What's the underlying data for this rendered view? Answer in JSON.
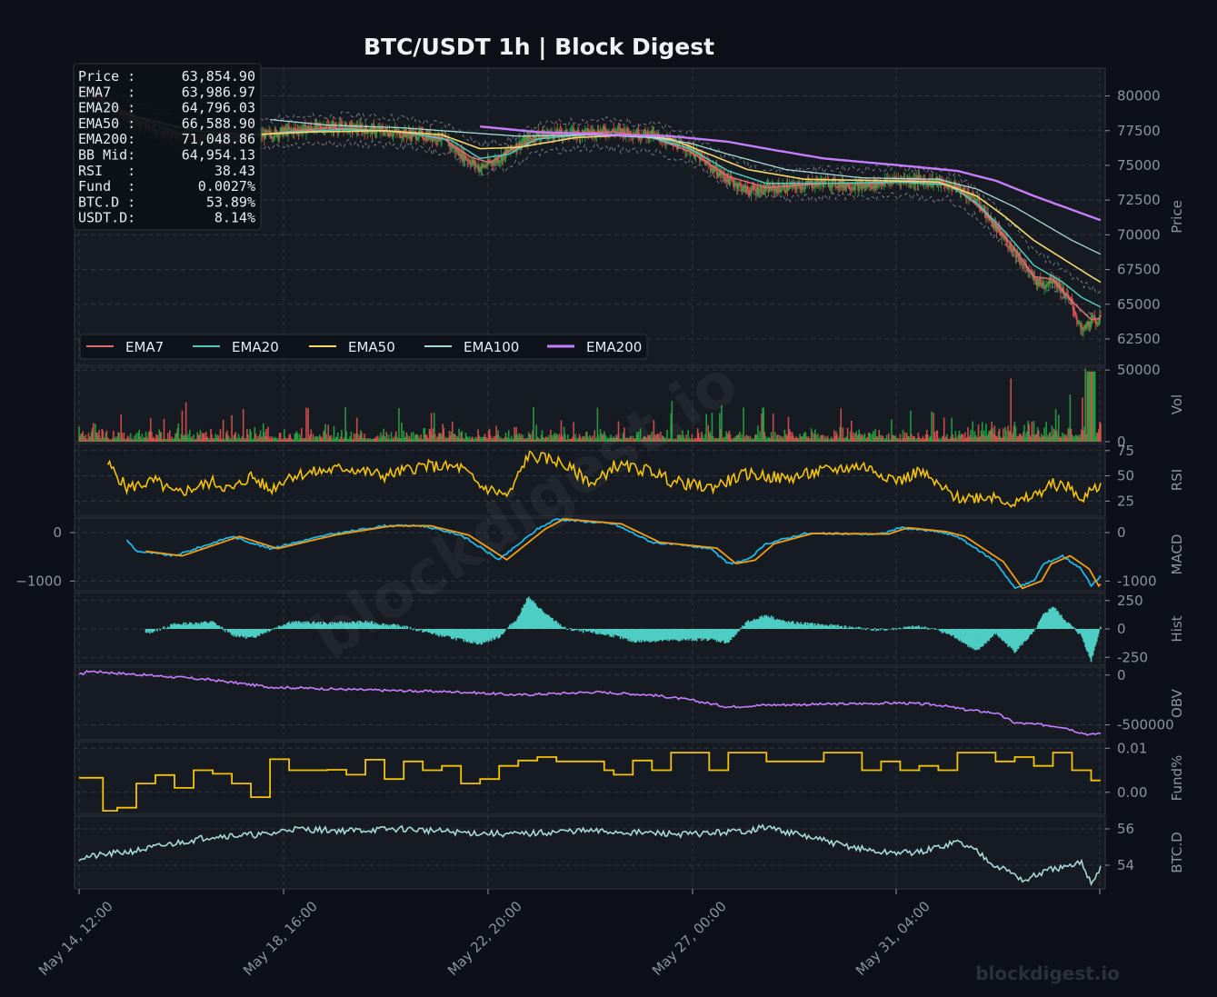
{
  "title": "BTC/USDT  1h  |  Block Digest",
  "watermark_center": "blockdigest.io",
  "watermark_corner": "blockdigest.io",
  "info_box": [
    {
      "label": "Price :",
      "value": "63,854.90"
    },
    {
      "label": "EMA7  :",
      "value": "63,986.97"
    },
    {
      "label": "EMA20 :",
      "value": "64,796.03"
    },
    {
      "label": "EMA50 :",
      "value": "66,588.90"
    },
    {
      "label": "EMA200:",
      "value": "71,048.86"
    },
    {
      "label": "BB Mid:",
      "value": "64,954.13"
    },
    {
      "label": "RSI   :",
      "value": "38.43"
    },
    {
      "label": "Fund  :",
      "value": "0.0027%"
    },
    {
      "label": "BTC.D :",
      "value": "53.89%"
    },
    {
      "label": "USDT.D:",
      "value": "8.14%"
    }
  ],
  "legend": [
    {
      "name": "EMA7",
      "color": "#e06c75"
    },
    {
      "name": "EMA20",
      "color": "#4ec9c0"
    },
    {
      "name": "EMA50",
      "color": "#f5d76e"
    },
    {
      "name": "EMA100",
      "color": "#a8d8d8"
    },
    {
      "name": "EMA200",
      "color": "#c77dff"
    }
  ],
  "colors": {
    "up": "#26a641",
    "down": "#d9534f",
    "rsi": "#f4c20d",
    "macd": "#1fb5e8",
    "signal": "#f39c12",
    "hist": "#4ecdc4",
    "obv": "#c77dff",
    "fund": "#f4c20d",
    "btcd": "#a8d8d8",
    "panel_bg": "#161b22",
    "page_bg": "#0d1117",
    "grid": "#30363d"
  },
  "chart_data": {
    "type": "candlestick",
    "x_ticks": [
      "May 14, 12:00",
      "May 18, 16:00",
      "May 22, 20:00",
      "May 27, 00:00",
      "May 31, 04:00"
    ],
    "panels": [
      {
        "id": "price",
        "ylabel": "Price",
        "ticks": [
          80000,
          77500,
          75000,
          72500,
          70000,
          67500,
          65000,
          62500
        ],
        "ylim": [
          60600,
          82000
        ],
        "series": [
          {
            "name": "Price",
            "points": [
              [
                0,
                80500
              ],
              [
                3,
                79500
              ],
              [
                6,
                78000
              ],
              [
                10,
                77200
              ],
              [
                14,
                76800
              ],
              [
                18,
                77000
              ],
              [
                22,
                77500
              ],
              [
                26,
                77800
              ],
              [
                30,
                77600
              ],
              [
                34,
                77300
              ],
              [
                38,
                77000
              ],
              [
                40,
                75800
              ],
              [
                42,
                74800
              ],
              [
                44,
                75500
              ],
              [
                46,
                76500
              ],
              [
                48,
                77200
              ],
              [
                52,
                77300
              ],
              [
                56,
                77500
              ],
              [
                60,
                77200
              ],
              [
                64,
                76200
              ],
              [
                66,
                75000
              ],
              [
                68,
                74000
              ],
              [
                70,
                73200
              ],
              [
                74,
                73400
              ],
              [
                78,
                73800
              ],
              [
                82,
                73500
              ],
              [
                86,
                74000
              ],
              [
                90,
                73800
              ],
              [
                92,
                73400
              ],
              [
                94,
                72500
              ],
              [
                96,
                70500
              ],
              [
                98,
                68800
              ],
              [
                100,
                66800
              ],
              [
                101,
                66400
              ],
              [
                102,
                66900
              ],
              [
                104,
                65000
              ],
              [
                105,
                63000
              ],
              [
                106,
                63800
              ],
              [
                107,
                63855
              ]
            ]
          },
          {
            "name": "EMA7",
            "points": [
              [
                0,
                80300
              ],
              [
                4,
                79200
              ],
              [
                8,
                77500
              ],
              [
                14,
                76900
              ],
              [
                20,
                77300
              ],
              [
                26,
                77700
              ],
              [
                32,
                77500
              ],
              [
                38,
                77000
              ],
              [
                41,
                75600
              ],
              [
                43,
                75200
              ],
              [
                46,
                76400
              ],
              [
                50,
                77300
              ],
              [
                56,
                77400
              ],
              [
                60,
                77000
              ],
              [
                64,
                76000
              ],
              [
                68,
                74200
              ],
              [
                72,
                73400
              ],
              [
                78,
                73700
              ],
              [
                84,
                73700
              ],
              [
                88,
                74000
              ],
              [
                92,
                73400
              ],
              [
                95,
                71500
              ],
              [
                98,
                69000
              ],
              [
                100,
                67000
              ],
              [
                102,
                66800
              ],
              [
                104,
                65200
              ],
              [
                106,
                63900
              ],
              [
                107,
                63987
              ]
            ]
          },
          {
            "name": "EMA20",
            "points": [
              [
                0,
                80000
              ],
              [
                5,
                78800
              ],
              [
                10,
                77400
              ],
              [
                16,
                77000
              ],
              [
                22,
                77400
              ],
              [
                28,
                77600
              ],
              [
                34,
                77400
              ],
              [
                39,
                76800
              ],
              [
                42,
                75500
              ],
              [
                45,
                75800
              ],
              [
                48,
                76900
              ],
              [
                54,
                77300
              ],
              [
                60,
                77000
              ],
              [
                64,
                76200
              ],
              [
                68,
                74600
              ],
              [
                72,
                73700
              ],
              [
                78,
                73700
              ],
              [
                86,
                73800
              ],
              [
                91,
                73600
              ],
              [
                94,
                72300
              ],
              [
                97,
                70200
              ],
              [
                100,
                67800
              ],
              [
                103,
                66600
              ],
              [
                105,
                65500
              ],
              [
                107,
                64796
              ]
            ]
          },
          {
            "name": "EMA50",
            "points": [
              [
                0,
                79500
              ],
              [
                6,
                78500
              ],
              [
                12,
                77500
              ],
              [
                18,
                77200
              ],
              [
                24,
                77400
              ],
              [
                32,
                77500
              ],
              [
                38,
                77200
              ],
              [
                42,
                76200
              ],
              [
                46,
                76300
              ],
              [
                52,
                77000
              ],
              [
                58,
                77200
              ],
              [
                62,
                76900
              ],
              [
                66,
                75800
              ],
              [
                70,
                74700
              ],
              [
                76,
                74000
              ],
              [
                84,
                73900
              ],
              [
                90,
                73800
              ],
              [
                94,
                72800
              ],
              [
                97,
                71300
              ],
              [
                100,
                69600
              ],
              [
                103,
                68300
              ],
              [
                106,
                67000
              ],
              [
                107,
                66589
              ]
            ]
          },
          {
            "name": "EMA100",
            "points": [
              [
                20,
                78300
              ],
              [
                26,
                77900
              ],
              [
                34,
                77700
              ],
              [
                40,
                77400
              ],
              [
                46,
                77100
              ],
              [
                54,
                77200
              ],
              [
                60,
                77000
              ],
              [
                64,
                76600
              ],
              [
                68,
                75800
              ],
              [
                74,
                74700
              ],
              [
                82,
                74100
              ],
              [
                90,
                74000
              ],
              [
                94,
                73300
              ],
              [
                98,
                72000
              ],
              [
                101,
                70800
              ],
              [
                104,
                69600
              ],
              [
                107,
                68600
              ]
            ]
          },
          {
            "name": "EMA200",
            "points": [
              [
                42,
                77800
              ],
              [
                48,
                77400
              ],
              [
                56,
                77200
              ],
              [
                62,
                77100
              ],
              [
                68,
                76700
              ],
              [
                72,
                76200
              ],
              [
                78,
                75500
              ],
              [
                86,
                75000
              ],
              [
                92,
                74600
              ],
              [
                96,
                73900
              ],
              [
                100,
                72800
              ],
              [
                104,
                71800
              ],
              [
                107,
                71049
              ]
            ]
          }
        ]
      },
      {
        "id": "vol",
        "ylabel": "Vol",
        "ticks": [
          50000,
          0
        ],
        "ylim": [
          0,
          52000
        ]
      },
      {
        "id": "rsi",
        "ylabel": "RSI",
        "ticks": [
          75,
          50,
          25
        ],
        "ylim": [
          10,
          82
        ]
      },
      {
        "id": "macd",
        "ylabel": "MACD",
        "ticks": [
          0,
          -1000
        ],
        "ylim": [
          -1200,
          300
        ]
      },
      {
        "id": "hist",
        "ylabel": "Hist",
        "ticks": [
          250,
          0,
          -250
        ],
        "ylim": [
          -320,
          320
        ]
      },
      {
        "id": "obv",
        "ylabel": "OBV",
        "ticks": [
          0,
          -500000
        ],
        "ylim": [
          -650000,
          80000
        ]
      },
      {
        "id": "fund",
        "ylabel": "Fund%",
        "ticks": [
          "0.01",
          "0.00"
        ],
        "ylim": [
          -0.005,
          0.0115
        ]
      },
      {
        "id": "btcd",
        "ylabel": "BTC.D",
        "ticks": [
          56,
          54
        ],
        "ylim": [
          52.7,
          56.7
        ],
        "series": [
          {
            "name": "BTC.D",
            "points": [
              [
                0,
                54.4
              ],
              [
                6,
                54.8
              ],
              [
                10,
                55.2
              ],
              [
                14,
                55.6
              ],
              [
                20,
                55.7
              ],
              [
                22,
                56.0
              ],
              [
                28,
                55.9
              ],
              [
                34,
                56.0
              ],
              [
                40,
                55.8
              ],
              [
                46,
                55.7
              ],
              [
                52,
                55.9
              ],
              [
                58,
                55.8
              ],
              [
                64,
                55.7
              ],
              [
                70,
                55.9
              ],
              [
                72,
                56.1
              ],
              [
                76,
                55.6
              ],
              [
                80,
                55.1
              ],
              [
                84,
                54.7
              ],
              [
                88,
                54.7
              ],
              [
                90,
                55.0
              ],
              [
                92,
                55.3
              ],
              [
                94,
                54.8
              ],
              [
                96,
                54.0
              ],
              [
                98,
                53.5
              ],
              [
                99,
                53.1
              ],
              [
                100,
                53.4
              ],
              [
                102,
                53.8
              ],
              [
                104,
                53.9
              ],
              [
                105,
                54.2
              ],
              [
                106,
                53.0
              ],
              [
                107,
                53.9
              ]
            ]
          }
        ]
      }
    ]
  }
}
